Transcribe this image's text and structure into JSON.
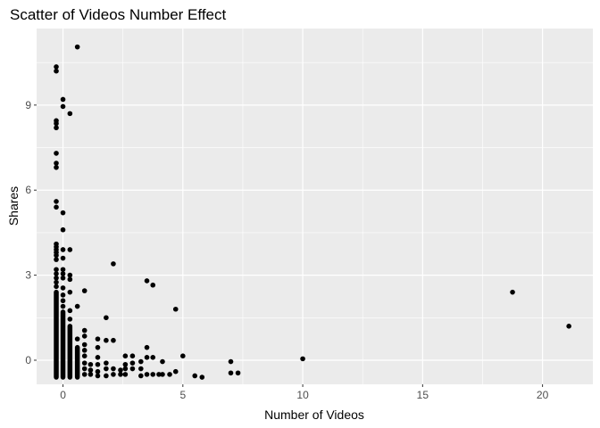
{
  "chart_data": {
    "type": "scatter",
    "title": "Scatter of Videos Number Effect",
    "xlabel": "Number of Videos",
    "ylabel": "Shares",
    "xlim": [
      -1.1,
      22.1
    ],
    "ylim": [
      -0.85,
      11.7
    ],
    "x_ticks": [
      0,
      5,
      10,
      15,
      20
    ],
    "x_minor": [
      2.5,
      7.5,
      12.5,
      17.5
    ],
    "y_ticks": [
      0,
      3,
      6,
      9
    ],
    "y_minor": [
      1.5,
      4.5,
      7.5,
      10.5
    ],
    "x_tick_labels": [
      "0",
      "5",
      "10",
      "15",
      "20"
    ],
    "y_tick_labels": [
      "0",
      "3",
      "6",
      "9"
    ],
    "grid": true,
    "point_color": "#000000",
    "panel_color": "#ebebeb",
    "grid_color": "#ffffff",
    "columns": [
      {
        "x": -0.28,
        "ymin": -0.6,
        "ymax": 2.4
      },
      {
        "x": 0.0,
        "ymin": -0.6,
        "ymax": 1.7
      },
      {
        "x": 0.29,
        "ymin": -0.6,
        "ymax": 1.2
      },
      {
        "x": 0.6,
        "ymin": -0.6,
        "ymax": 0.45
      }
    ],
    "points": [
      {
        "x": 0.6,
        "y": 11.05
      },
      {
        "x": -0.28,
        "y": 10.35
      },
      {
        "x": -0.28,
        "y": 10.2
      },
      {
        "x": 0.0,
        "y": 9.2
      },
      {
        "x": 0.0,
        "y": 8.95
      },
      {
        "x": 0.29,
        "y": 8.7
      },
      {
        "x": -0.28,
        "y": 8.45
      },
      {
        "x": -0.28,
        "y": 8.35
      },
      {
        "x": -0.28,
        "y": 8.2
      },
      {
        "x": -0.28,
        "y": 7.3
      },
      {
        "x": -0.28,
        "y": 6.95
      },
      {
        "x": -0.28,
        "y": 6.8
      },
      {
        "x": -0.28,
        "y": 5.6
      },
      {
        "x": -0.28,
        "y": 5.4
      },
      {
        "x": 0.0,
        "y": 5.2
      },
      {
        "x": 0.0,
        "y": 4.6
      },
      {
        "x": -0.28,
        "y": 4.1
      },
      {
        "x": -0.28,
        "y": 4.0
      },
      {
        "x": -0.28,
        "y": 3.9
      },
      {
        "x": -0.28,
        "y": 3.8
      },
      {
        "x": -0.28,
        "y": 3.7
      },
      {
        "x": -0.28,
        "y": 3.55
      },
      {
        "x": -0.28,
        "y": 3.2
      },
      {
        "x": -0.28,
        "y": 3.05
      },
      {
        "x": -0.28,
        "y": 2.9
      },
      {
        "x": -0.28,
        "y": 2.75
      },
      {
        "x": -0.28,
        "y": 2.6
      },
      {
        "x": 0.0,
        "y": 3.9
      },
      {
        "x": 0.0,
        "y": 3.6
      },
      {
        "x": 0.0,
        "y": 3.2
      },
      {
        "x": 0.0,
        "y": 3.05
      },
      {
        "x": 0.0,
        "y": 2.9
      },
      {
        "x": 0.0,
        "y": 2.55
      },
      {
        "x": 0.0,
        "y": 2.3
      },
      {
        "x": 0.0,
        "y": 2.1
      },
      {
        "x": 0.0,
        "y": 1.9
      },
      {
        "x": 0.29,
        "y": 3.9
      },
      {
        "x": 0.29,
        "y": 3.0
      },
      {
        "x": 0.29,
        "y": 2.85
      },
      {
        "x": 0.29,
        "y": 2.4
      },
      {
        "x": 0.29,
        "y": 1.75
      },
      {
        "x": 0.29,
        "y": 1.45
      },
      {
        "x": 0.6,
        "y": 1.9
      },
      {
        "x": 0.6,
        "y": 0.75
      },
      {
        "x": 0.9,
        "y": 2.45
      },
      {
        "x": 0.9,
        "y": 1.05
      },
      {
        "x": 0.9,
        "y": 0.85
      },
      {
        "x": 0.9,
        "y": 0.55
      },
      {
        "x": 0.9,
        "y": 0.35
      },
      {
        "x": 0.9,
        "y": 0.15
      },
      {
        "x": 0.9,
        "y": -0.1
      },
      {
        "x": 0.9,
        "y": -0.3
      },
      {
        "x": 0.9,
        "y": -0.5
      },
      {
        "x": 1.15,
        "y": -0.15
      },
      {
        "x": 1.15,
        "y": -0.35
      },
      {
        "x": 1.15,
        "y": -0.5
      },
      {
        "x": 1.45,
        "y": 0.75
      },
      {
        "x": 1.45,
        "y": 0.45
      },
      {
        "x": 1.45,
        "y": 0.1
      },
      {
        "x": 1.45,
        "y": -0.15
      },
      {
        "x": 1.45,
        "y": -0.4
      },
      {
        "x": 1.45,
        "y": -0.55
      },
      {
        "x": 1.8,
        "y": 1.5
      },
      {
        "x": 1.8,
        "y": 0.7
      },
      {
        "x": 1.8,
        "y": -0.1
      },
      {
        "x": 1.8,
        "y": -0.3
      },
      {
        "x": 1.8,
        "y": -0.55
      },
      {
        "x": 2.1,
        "y": 3.4
      },
      {
        "x": 2.1,
        "y": 0.7
      },
      {
        "x": 2.1,
        "y": -0.3
      },
      {
        "x": 2.1,
        "y": -0.5
      },
      {
        "x": 2.4,
        "y": -0.35
      },
      {
        "x": 2.4,
        "y": -0.5
      },
      {
        "x": 2.6,
        "y": 0.15
      },
      {
        "x": 2.6,
        "y": -0.15
      },
      {
        "x": 2.6,
        "y": -0.3
      },
      {
        "x": 2.6,
        "y": -0.5
      },
      {
        "x": 2.9,
        "y": 0.15
      },
      {
        "x": 2.9,
        "y": -0.1
      },
      {
        "x": 2.9,
        "y": -0.3
      },
      {
        "x": 3.25,
        "y": -0.05
      },
      {
        "x": 3.25,
        "y": -0.3
      },
      {
        "x": 3.25,
        "y": -0.55
      },
      {
        "x": 3.5,
        "y": 2.8
      },
      {
        "x": 3.5,
        "y": 0.45
      },
      {
        "x": 3.5,
        "y": 0.1
      },
      {
        "x": 3.5,
        "y": -0.5
      },
      {
        "x": 3.75,
        "y": 2.65
      },
      {
        "x": 3.75,
        "y": 0.1
      },
      {
        "x": 3.75,
        "y": -0.5
      },
      {
        "x": 4.0,
        "y": -0.5
      },
      {
        "x": 4.15,
        "y": -0.05
      },
      {
        "x": 4.15,
        "y": -0.5
      },
      {
        "x": 4.45,
        "y": -0.5
      },
      {
        "x": 4.7,
        "y": 1.8
      },
      {
        "x": 4.7,
        "y": -0.4
      },
      {
        "x": 5.0,
        "y": 0.15
      },
      {
        "x": 5.5,
        "y": -0.55
      },
      {
        "x": 5.8,
        "y": -0.6
      },
      {
        "x": 7.0,
        "y": -0.05
      },
      {
        "x": 7.0,
        "y": -0.45
      },
      {
        "x": 7.3,
        "y": -0.45
      },
      {
        "x": 10.0,
        "y": 0.05
      },
      {
        "x": 18.75,
        "y": 2.4
      },
      {
        "x": 21.1,
        "y": 1.2
      }
    ]
  }
}
